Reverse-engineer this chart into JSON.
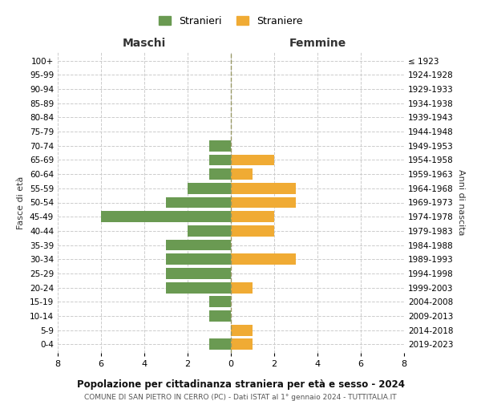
{
  "age_groups": [
    "0-4",
    "5-9",
    "10-14",
    "15-19",
    "20-24",
    "25-29",
    "30-34",
    "35-39",
    "40-44",
    "45-49",
    "50-54",
    "55-59",
    "60-64",
    "65-69",
    "70-74",
    "75-79",
    "80-84",
    "85-89",
    "90-94",
    "95-99",
    "100+"
  ],
  "birth_years": [
    "2019-2023",
    "2014-2018",
    "2009-2013",
    "2004-2008",
    "1999-2003",
    "1994-1998",
    "1989-1993",
    "1984-1988",
    "1979-1983",
    "1974-1978",
    "1969-1973",
    "1964-1968",
    "1959-1963",
    "1954-1958",
    "1949-1953",
    "1944-1948",
    "1939-1943",
    "1934-1938",
    "1929-1933",
    "1924-1928",
    "≤ 1923"
  ],
  "males": [
    1,
    0,
    1,
    1,
    3,
    3,
    3,
    3,
    2,
    6,
    3,
    2,
    1,
    1,
    1,
    0,
    0,
    0,
    0,
    0,
    0
  ],
  "females": [
    1,
    1,
    0,
    0,
    1,
    0,
    3,
    0,
    2,
    2,
    3,
    3,
    1,
    2,
    0,
    0,
    0,
    0,
    0,
    0,
    0
  ],
  "male_color": "#6a9a52",
  "female_color": "#f0ab34",
  "grid_color": "#cccccc",
  "center_line_color": "#999966",
  "xlim": 8,
  "title": "Popolazione per cittadinanza straniera per età e sesso - 2024",
  "subtitle": "COMUNE DI SAN PIETRO IN CERRO (PC) - Dati ISTAT al 1° gennaio 2024 - TUTTITALIA.IT",
  "left_label": "Maschi",
  "right_label": "Femmine",
  "y_label": "Fasce di età",
  "right_y_label": "Anni di nascita",
  "legend_male": "Stranieri",
  "legend_female": "Straniere",
  "background_color": "#ffffff"
}
